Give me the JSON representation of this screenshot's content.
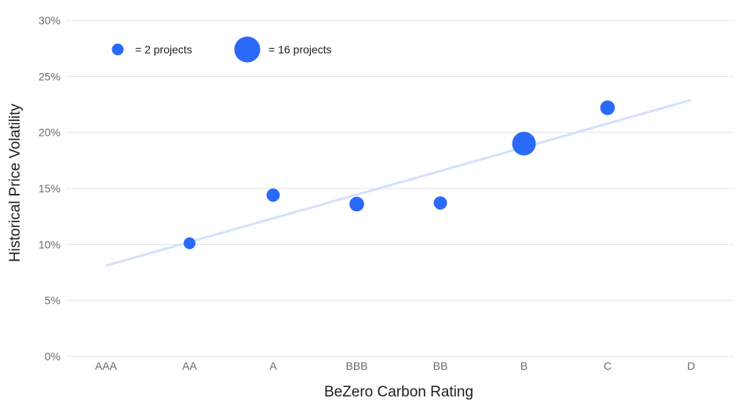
{
  "chart_data": {
    "type": "scatter",
    "subtype": "bubble",
    "title": "",
    "xlabel": "BeZero Carbon Rating",
    "ylabel": "Historical Price Volatility",
    "categories": [
      "AAA",
      "AA",
      "A",
      "BBB",
      "BB",
      "B",
      "C",
      "D"
    ],
    "y_ticks": [
      "0%",
      "5%",
      "10%",
      "15%",
      "20%",
      "25%",
      "30%"
    ],
    "ylim": [
      0,
      30
    ],
    "grid": true,
    "points": [
      {
        "x": "AA",
        "y": 10.1,
        "projects": 2
      },
      {
        "x": "A",
        "y": 14.4,
        "projects": 3
      },
      {
        "x": "BBB",
        "y": 13.6,
        "projects": 4
      },
      {
        "x": "BB",
        "y": 13.7,
        "projects": 3
      },
      {
        "x": "B",
        "y": 19.0,
        "projects": 13
      },
      {
        "x": "C",
        "y": 22.2,
        "projects": 4
      }
    ],
    "trendline": {
      "from": {
        "x": "AAA",
        "y": 8.1
      },
      "to": {
        "x": "D",
        "y": 22.9
      }
    },
    "legend": {
      "placement": "top-left",
      "entries": [
        {
          "projects": 2,
          "label": "= 2 projects"
        },
        {
          "projects": 16,
          "label": "= 16 projects"
        }
      ]
    },
    "colors": {
      "bubble": "#2a6af9",
      "trend": "#d6e0fb",
      "grid": "#e2e2e2"
    }
  }
}
